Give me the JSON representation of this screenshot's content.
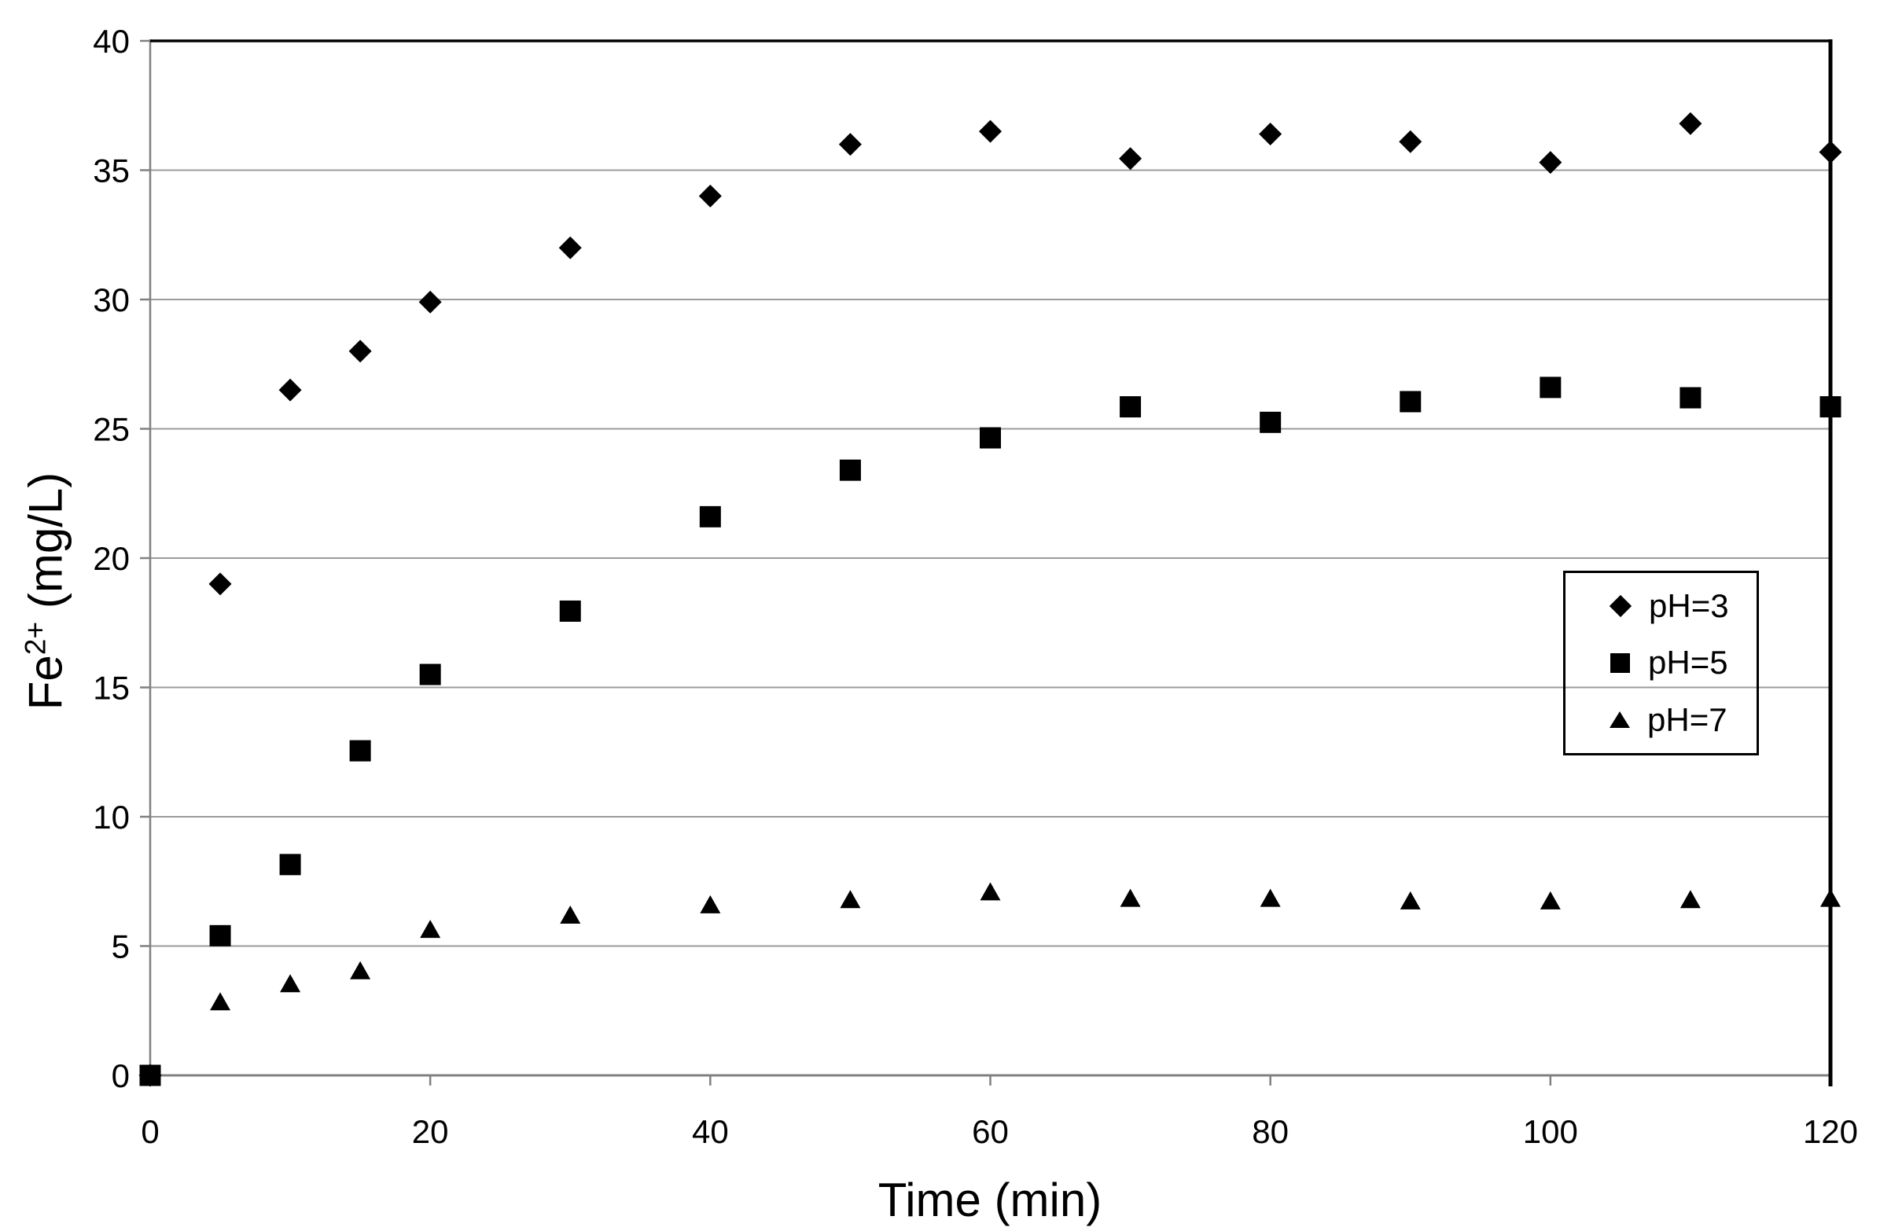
{
  "chart_data": {
    "type": "scatter",
    "title": "",
    "xlabel": "Time (min)",
    "ylabel": "Fe2+ (mg/L)",
    "ylabel_parts": {
      "base": "Fe",
      "superscript": "2+",
      "rest": " (mg/L)"
    },
    "xlim": [
      0,
      120
    ],
    "ylim": [
      0,
      40
    ],
    "x_ticks": [
      0,
      20,
      40,
      60,
      80,
      100,
      120
    ],
    "y_ticks": [
      0,
      5,
      10,
      15,
      20,
      25,
      30,
      35,
      40
    ],
    "grid": "horizontal-only",
    "legend_position": "middle-right-inside",
    "x": [
      0,
      5,
      10,
      15,
      20,
      30,
      40,
      50,
      60,
      70,
      80,
      90,
      100,
      110,
      120
    ],
    "series": [
      {
        "name": "pH=3",
        "marker": "diamond",
        "values": [
          0,
          19.0,
          26.5,
          28.0,
          29.9,
          32.0,
          34.0,
          36.0,
          36.5,
          35.45,
          36.4,
          36.1,
          35.3,
          36.8,
          35.7
        ]
      },
      {
        "name": "pH=5",
        "marker": "square",
        "values": [
          0,
          5.4,
          8.15,
          12.55,
          15.5,
          17.95,
          21.6,
          23.4,
          24.65,
          25.85,
          25.25,
          26.05,
          26.6,
          26.2,
          25.85
        ]
      },
      {
        "name": "pH=7",
        "marker": "triangle",
        "values": [
          0,
          2.85,
          3.55,
          4.05,
          5.65,
          6.2,
          6.6,
          6.8,
          7.1,
          6.85,
          6.85,
          6.75,
          6.75,
          6.8,
          6.85
        ]
      }
    ],
    "colors": {
      "marker": "#000000",
      "gridline": "#9b9b9b",
      "axis_line": "#808080",
      "plot_border": "#000000",
      "background": "#ffffff",
      "text": "#000000"
    }
  },
  "legend": {
    "items": [
      {
        "label": "pH=3",
        "marker": "diamond"
      },
      {
        "label": "pH=5",
        "marker": "square"
      },
      {
        "label": "pH=7",
        "marker": "triangle"
      }
    ]
  }
}
